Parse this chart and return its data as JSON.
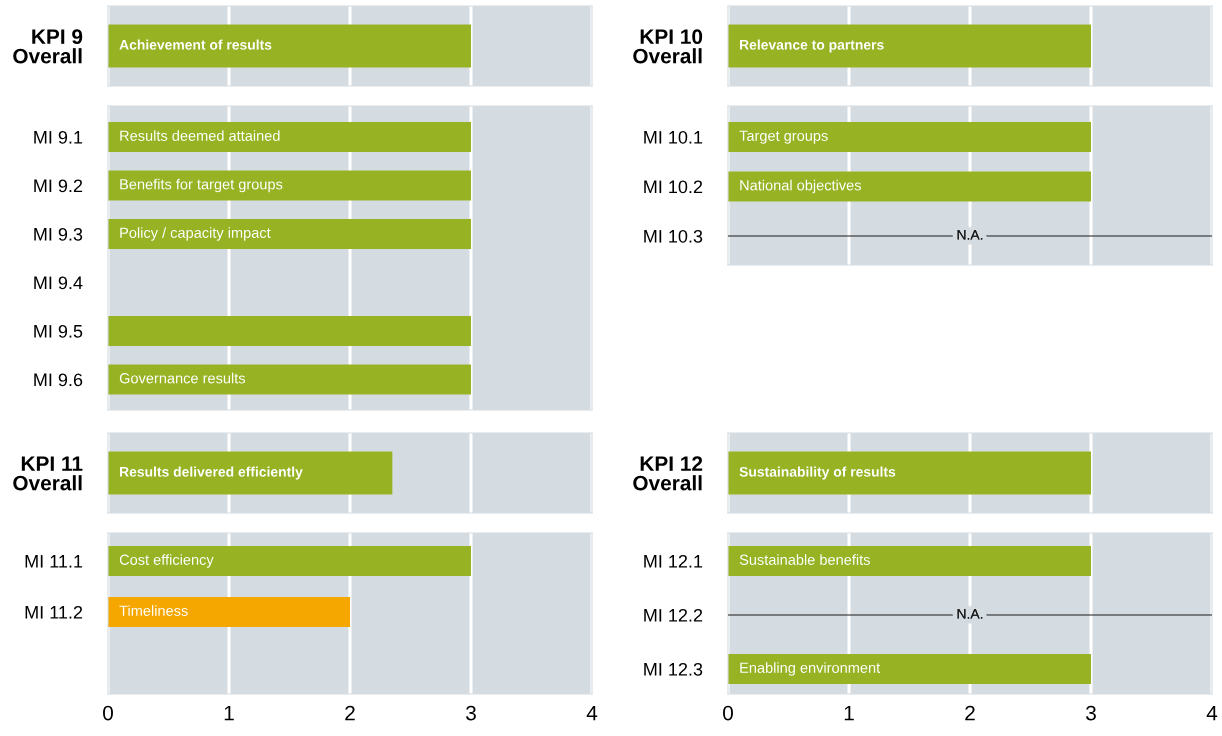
{
  "chart_data": [
    {
      "type": "bar",
      "orientation": "horizontal",
      "categories": [
        "KPI 9\nOverall"
      ],
      "values": [
        3
      ],
      "value_labels": [
        "Achievement of results"
      ],
      "color": "#97b324",
      "xlim": [
        0,
        4
      ],
      "xticks": [
        0,
        1,
        2,
        3,
        4
      ],
      "grid": "x",
      "tick_labels": "y"
    },
    {
      "type": "bar",
      "orientation": "horizontal",
      "categories": [
        "KPI 10\nOverall"
      ],
      "values": [
        3
      ],
      "value_labels": [
        "Relevance to partners"
      ],
      "color": "#97b324",
      "xlim": [
        0,
        4
      ],
      "xticks": [
        0,
        1,
        2,
        3,
        4
      ],
      "grid": "x",
      "tick_labels": "y"
    },
    {
      "type": "bar",
      "orientation": "horizontal",
      "categories": [
        "MI 9.1",
        "MI 9.2",
        "MI 9.3",
        "MI 9.4",
        "MI 9.5",
        "MI 9.6"
      ],
      "values": [
        3,
        3,
        3,
        null,
        3,
        3
      ],
      "value_labels": [
        "Results deemed attained",
        "Benefits for target groups",
        "Policy / capacity impact",
        null,
        null,
        "Governance results"
      ],
      "color": "#97b324",
      "xlim": [
        0,
        4
      ],
      "xticks": [
        0,
        1,
        2,
        3,
        4
      ],
      "grid": "x",
      "tick_labels": "y"
    },
    {
      "type": "bar",
      "orientation": "horizontal",
      "categories": [
        "MI 10.1",
        "MI 10.2",
        "MI 10.3"
      ],
      "values": [
        3,
        3,
        null
      ],
      "value_labels": [
        "Target groups",
        "National objectives",
        null
      ],
      "color": "#97b324",
      "xlim": [
        0,
        4
      ],
      "xticks": [
        0,
        1,
        2,
        3,
        4
      ],
      "grid": "x",
      "tick_labels": "y",
      "ref_lines": [
        {
          "axis": "y",
          "value": "MI 10.3",
          "label": "N.A.",
          "color": "#1a1a1a"
        }
      ]
    },
    {
      "type": "bar",
      "orientation": "horizontal",
      "categories": [
        "KPI 11\nOverall"
      ],
      "values": [
        2.35
      ],
      "value_labels": [
        "Results delivered efficiently"
      ],
      "color": "#97b324",
      "xlim": [
        0,
        4
      ],
      "xticks": [
        0,
        1,
        2,
        3,
        4
      ],
      "grid": "x",
      "tick_labels": "y"
    },
    {
      "type": "bar",
      "orientation": "horizontal",
      "categories": [
        "KPI 12\nOverall"
      ],
      "values": [
        3
      ],
      "value_labels": [
        "Sustainability of results"
      ],
      "color": "#97b324",
      "xlim": [
        0,
        4
      ],
      "xticks": [
        0,
        1,
        2,
        3,
        4
      ],
      "grid": "x",
      "tick_labels": "y"
    },
    {
      "type": "bar",
      "orientation": "horizontal",
      "categories": [
        "MI 11.1",
        "MI 11.2"
      ],
      "values": [
        3,
        2
      ],
      "value_labels": [
        "Cost efficiency",
        "Timeliness"
      ],
      "colors": [
        "#97b324",
        "#f5a700"
      ],
      "xlim": [
        0,
        4
      ],
      "xticks": [
        0,
        1,
        2,
        3,
        4
      ],
      "grid": "x"
    },
    {
      "type": "bar",
      "orientation": "horizontal",
      "categories": [
        "MI 12.1",
        "MI 12.2",
        "MI 12.3"
      ],
      "values": [
        3,
        null,
        3
      ],
      "value_labels": [
        "Sustainable benefits",
        null,
        "Enabling environment"
      ],
      "color": "#97b324",
      "xlim": [
        0,
        4
      ],
      "xticks": [
        0,
        1,
        2,
        3,
        4
      ],
      "grid": "x",
      "ref_lines": [
        {
          "axis": "y",
          "value": "MI 12.2",
          "label": "N.A.",
          "color": "#1a1a1a"
        }
      ]
    }
  ]
}
